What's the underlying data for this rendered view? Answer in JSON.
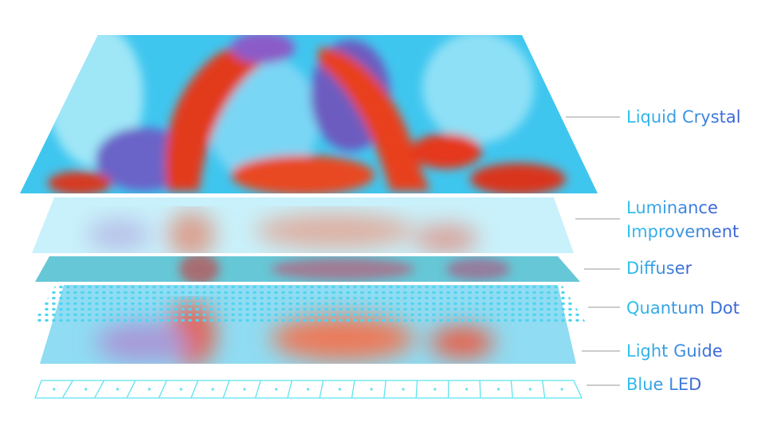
{
  "layers": [
    {
      "label": "Liquid Crystal"
    },
    {
      "label": "Luminance\nImprovement",
      "line1": "Luminance",
      "line2": "Improvement"
    },
    {
      "label": "Diffuser"
    },
    {
      "label": "Quantum Dot"
    },
    {
      "label": "Light Guide"
    },
    {
      "label": "Blue LED"
    }
  ],
  "colors": {
    "label_start": "#2cc3ee",
    "label_end": "#3d5fd6",
    "leader_line": "#9a9a9a",
    "led_grid": "#5ee3f0",
    "dot": "#4fd4f0"
  }
}
